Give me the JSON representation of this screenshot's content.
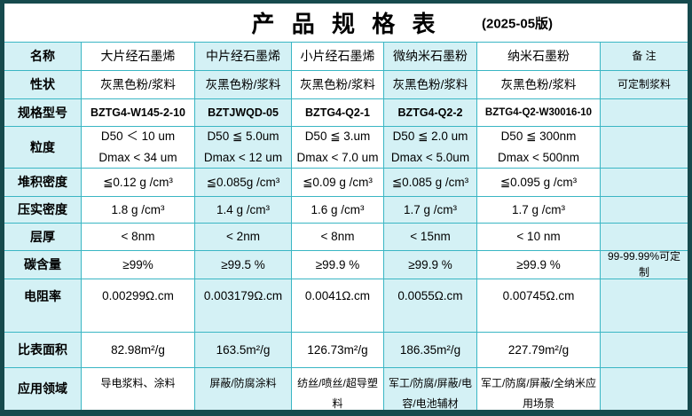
{
  "title": {
    "main": "产 品 规 格 表",
    "version": "(2025-05版)"
  },
  "colors": {
    "outer_frame": "#164a4d",
    "grid_line": "#3ab6c4",
    "cell_cyan": "#d4f1f5",
    "cell_white": "#ffffff",
    "text": "#000000"
  },
  "table": {
    "column_pattern": [
      "cyan",
      "white",
      "cyan",
      "white",
      "cyan",
      "white",
      "cyan"
    ],
    "rows": [
      {
        "name": "name",
        "cells": [
          "名称",
          "大片经石墨烯",
          "中片经石墨烯",
          "小片经石墨烯",
          "微纳米石墨粉",
          "纳米石墨粉",
          "备  注"
        ]
      },
      {
        "name": "appearance",
        "cells": [
          "性状",
          "灰黑色粉/浆料",
          "灰黑色粉/浆料",
          "灰黑色粉/浆料",
          "灰黑色粉/浆料",
          "灰黑色粉/浆料",
          "可定制浆料"
        ]
      },
      {
        "name": "model",
        "cells": [
          "规格型号",
          "BZTG4-W145-2-10",
          "BZTJWQD-05",
          "BZTG4-Q2-1",
          "BZTG4-Q2-2",
          "BZTG4-Q2-W30016-10",
          ""
        ]
      },
      {
        "name": "particle-size",
        "cells": [
          "粒度",
          "D50 ＜ 10 um\nDmax ˂ 34 um",
          "D50 ≦ 5.0um\nDmax ˂ 12 um",
          "D50 ≦ 3.um\nDmax ˂ 7.0 um",
          "D50 ≦ 2.0 um\nDmax ˂ 5.0um",
          "D50 ≦ 300nm\nDmax ˂ 500nm",
          ""
        ]
      },
      {
        "name": "bulk-density",
        "cells": [
          "堆积密度",
          "≦0.12 g /cm³",
          "≦0.085g /cm³",
          "≦0.09 g /cm³",
          "≦0.085 g /cm³",
          "≦0.095 g /cm³",
          ""
        ]
      },
      {
        "name": "tap-density",
        "cells": [
          "压实密度",
          "1.8 g /cm³",
          "1.4 g /cm³",
          "1.6 g /cm³",
          "1.7 g /cm³",
          "1.7 g /cm³",
          ""
        ]
      },
      {
        "name": "layer-thickness",
        "cells": [
          "层厚",
          "˂ 8nm",
          "˂ 2nm",
          "˂ 8nm",
          "˂ 15nm",
          "˂ 10 nm",
          ""
        ]
      },
      {
        "name": "carbon-content",
        "cells": [
          "碳含量",
          "≥99%",
          "≥99.5 %",
          "≥99.9 %",
          "≥99.9 %",
          "≥99.9 %",
          "99-99.99%可定制"
        ]
      },
      {
        "name": "resistivity",
        "cells": [
          "电阻率",
          "0.00299Ω.cm",
          "0.003179Ω.cm",
          "0.0041Ω.cm",
          "0.0055Ω.cm",
          "0.00745Ω.cm",
          ""
        ]
      },
      {
        "name": "surface-area",
        "cells": [
          "比表面积",
          "82.98m²/g",
          "163.5m²/g",
          "126.73m²/g",
          "186.35m²/g",
          "227.79m²/g",
          ""
        ]
      },
      {
        "name": "applications",
        "cells": [
          "应用领域",
          "导电浆料、涂料",
          "屏蔽/防腐涂料",
          "纺丝/喷丝/超导塑料",
          "军工/防腐/屏蔽/电容/电池辅材",
          "军工/防腐/屏蔽/全纳米应用场景",
          ""
        ]
      }
    ]
  }
}
